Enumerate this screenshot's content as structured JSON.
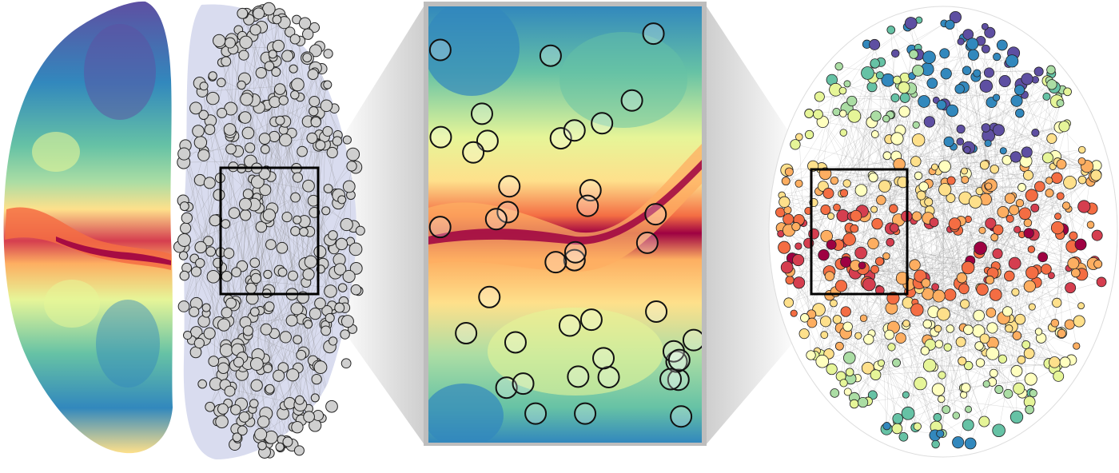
{
  "figure": {
    "panels": [
      {
        "id": "surface-map",
        "kind": "cortical-surface-heatmap",
        "colormap": "Spectral_r"
      },
      {
        "id": "node-overlay",
        "kind": "network-nodes-on-surface",
        "node_color": "#c8c8c8"
      },
      {
        "id": "zoom-detail",
        "kind": "magnified-surface-with-nodes"
      },
      {
        "id": "colored-network",
        "kind": "network-nodes-colored-by-value"
      }
    ],
    "colors": {
      "high": "#9e0142",
      "mid_high": "#f46d43",
      "mid": "#ffffbf",
      "mid_low": "#66c2a5",
      "low": "#5e4fa2",
      "edge": "#888888",
      "zoom_frame": "#000000",
      "zoom_connector": "#d0d0d0"
    }
  }
}
